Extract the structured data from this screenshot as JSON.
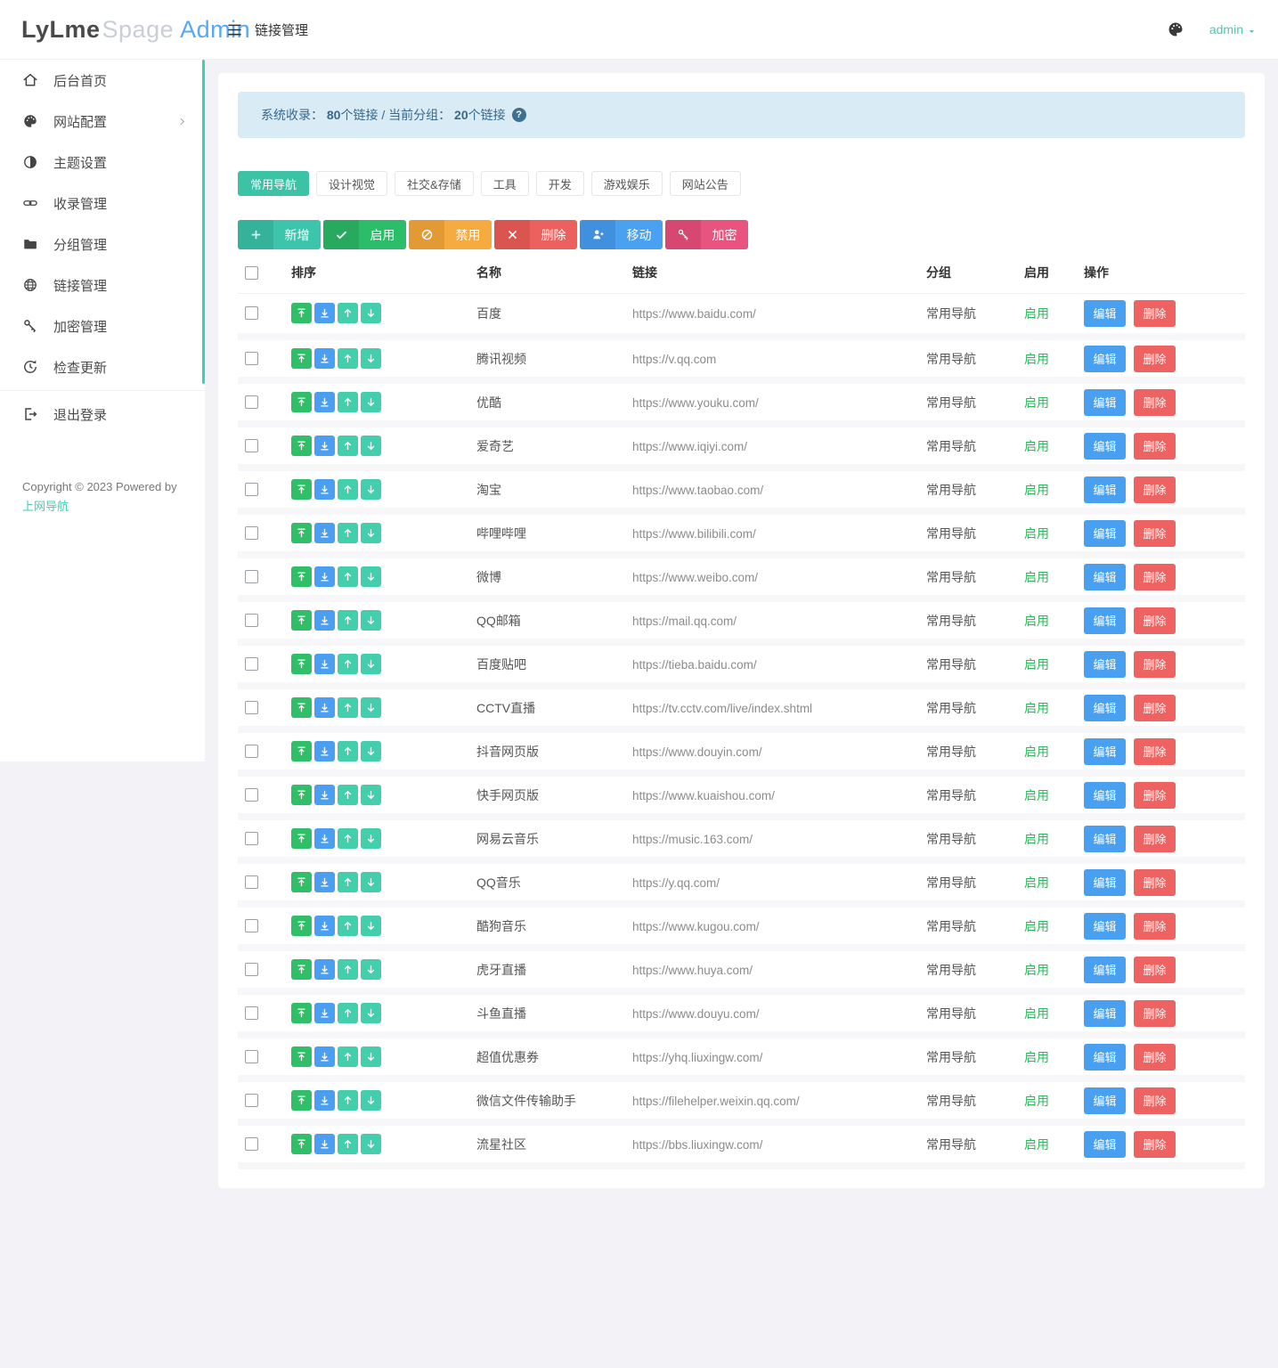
{
  "brand": {
    "part1": "LyLme",
    "part2": "Spage",
    "part3": "Admin"
  },
  "header": {
    "title": "链接管理",
    "user": "admin"
  },
  "sidebar": {
    "items": [
      {
        "label": "后台首页",
        "icon": "home-icon"
      },
      {
        "label": "网站配置",
        "icon": "palette-icon",
        "chevron": true
      },
      {
        "label": "主题设置",
        "icon": "contrast-icon"
      },
      {
        "label": "收录管理",
        "icon": "chain-link-icon"
      },
      {
        "label": "分组管理",
        "icon": "folder-icon"
      },
      {
        "label": "链接管理",
        "icon": "globe-icon"
      },
      {
        "label": "加密管理",
        "icon": "key-icon"
      },
      {
        "label": "检查更新",
        "icon": "update-clock-icon"
      },
      {
        "label": "退出登录",
        "icon": "logout-icon",
        "divider_before": true
      }
    ],
    "copyright": "Copyright © 2023 Powered by",
    "copyright_link": "上网导航",
    "accent_color": "#3fd0b2"
  },
  "info_bar": {
    "label_total": "系统收录：",
    "total": "80",
    "label_mid": " 个链接 / 当前分组：",
    "group_count": "20",
    "suffix": "个链接",
    "help": "?"
  },
  "tabs": [
    {
      "label": "常用导航",
      "active": true
    },
    {
      "label": "设计视觉",
      "active": false
    },
    {
      "label": "社交&存储",
      "active": false
    },
    {
      "label": "工具",
      "active": false
    },
    {
      "label": "开发",
      "active": false
    },
    {
      "label": "游戏娱乐",
      "active": false
    },
    {
      "label": "网站公告",
      "active": false
    }
  ],
  "toolbar": [
    {
      "label": "新增",
      "icon": "plus-icon",
      "bg": "#3cc5ab",
      "icon_bg": "#35b29a"
    },
    {
      "label": "启用",
      "icon": "check-icon",
      "bg": "#2cbd68",
      "icon_bg": "#27aa5d"
    },
    {
      "label": "禁用",
      "icon": "ban-icon",
      "bg": "#f5ab40",
      "icon_bg": "#e39a34"
    },
    {
      "label": "删除",
      "icon": "close-icon",
      "bg": "#ec615d",
      "icon_bg": "#da5450"
    },
    {
      "label": "移动",
      "icon": "user-move-icon",
      "bg": "#4aa1f2",
      "icon_bg": "#4190dd"
    },
    {
      "label": "加密",
      "icon": "key-icon",
      "bg": "#e9537f",
      "icon_bg": "#d64871"
    }
  ],
  "table": {
    "headers": [
      "排序",
      "名称",
      "链接",
      "分组",
      "启用",
      "操作"
    ],
    "sort_buttons": [
      {
        "icon": "move-top-icon",
        "color": "#2fbf66"
      },
      {
        "icon": "move-bottom-icon",
        "color": "#4b9ff2"
      },
      {
        "icon": "move-up-icon",
        "color": "#43cfab"
      },
      {
        "icon": "move-down-icon",
        "color": "#43cfab"
      }
    ],
    "edit_label": "编辑",
    "delete_label": "删除",
    "edit_color": "#4aa0f0",
    "delete_color": "#ee6361",
    "status_color": "#2eb85c",
    "rows": [
      {
        "name": "百度",
        "url": "https://www.baidu.com/",
        "group": "常用导航",
        "status": "启用"
      },
      {
        "name": "腾讯视频",
        "url": "https://v.qq.com",
        "group": "常用导航",
        "status": "启用"
      },
      {
        "name": "优酷",
        "url": "https://www.youku.com/",
        "group": "常用导航",
        "status": "启用"
      },
      {
        "name": "爱奇艺",
        "url": "https://www.iqiyi.com/",
        "group": "常用导航",
        "status": "启用"
      },
      {
        "name": "淘宝",
        "url": "https://www.taobao.com/",
        "group": "常用导航",
        "status": "启用"
      },
      {
        "name": "哔哩哔哩",
        "url": "https://www.bilibili.com/",
        "group": "常用导航",
        "status": "启用"
      },
      {
        "name": "微博",
        "url": "https://www.weibo.com/",
        "group": "常用导航",
        "status": "启用"
      },
      {
        "name": "QQ邮箱",
        "url": "https://mail.qq.com/",
        "group": "常用导航",
        "status": "启用"
      },
      {
        "name": "百度贴吧",
        "url": "https://tieba.baidu.com/",
        "group": "常用导航",
        "status": "启用"
      },
      {
        "name": "CCTV直播",
        "url": "https://tv.cctv.com/live/index.shtml",
        "group": "常用导航",
        "status": "启用"
      },
      {
        "name": "抖音网页版",
        "url": "https://www.douyin.com/",
        "group": "常用导航",
        "status": "启用"
      },
      {
        "name": "快手网页版",
        "url": "https://www.kuaishou.com/",
        "group": "常用导航",
        "status": "启用"
      },
      {
        "name": "网易云音乐",
        "url": "https://music.163.com/",
        "group": "常用导航",
        "status": "启用"
      },
      {
        "name": "QQ音乐",
        "url": "https://y.qq.com/",
        "group": "常用导航",
        "status": "启用"
      },
      {
        "name": "酷狗音乐",
        "url": "https://www.kugou.com/",
        "group": "常用导航",
        "status": "启用"
      },
      {
        "name": "虎牙直播",
        "url": "https://www.huya.com/",
        "group": "常用导航",
        "status": "启用"
      },
      {
        "name": "斗鱼直播",
        "url": "https://www.douyu.com/",
        "group": "常用导航",
        "status": "启用"
      },
      {
        "name": "超值优惠券",
        "url": "https://yhq.liuxingw.com/",
        "group": "常用导航",
        "status": "启用"
      },
      {
        "name": "微信文件传输助手",
        "url": "https://filehelper.weixin.qq.com/",
        "group": "常用导航",
        "status": "启用"
      },
      {
        "name": "流星社区",
        "url": "https://bbs.liuxingw.com/",
        "group": "常用导航",
        "status": "启用"
      }
    ]
  }
}
